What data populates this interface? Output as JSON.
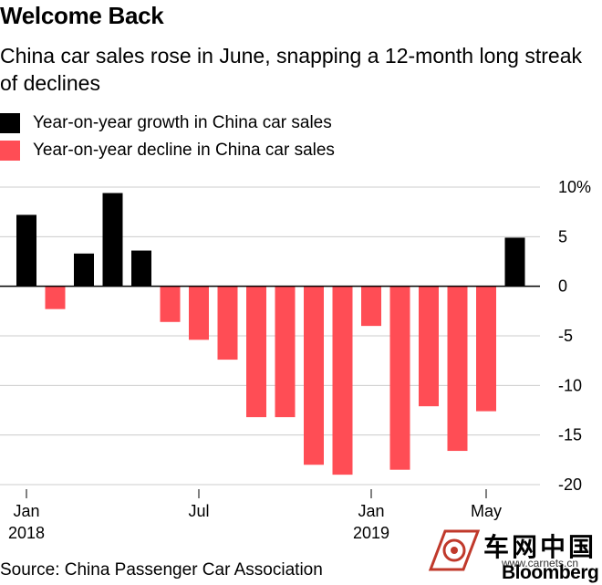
{
  "header": {
    "title": "Welcome Back",
    "subtitle": "China car sales rose in June, snapping a 12-month long streak of declines"
  },
  "legend": [
    {
      "label": "Year-on-year growth in China car sales",
      "color": "#000000"
    },
    {
      "label": "Year-on-year decline in China car sales",
      "color": "#ff4d55"
    }
  ],
  "footer": {
    "source": "Source: China Passenger Car Association"
  },
  "watermark": {
    "chinese": "车网中国",
    "url": "www.carnets.cn",
    "brand": "Bloomberg"
  },
  "chart_data": {
    "type": "bar",
    "categories": [
      "Jan 2018",
      "Feb 2018",
      "Mar 2018",
      "Apr 2018",
      "May 2018",
      "Jun 2018",
      "Jul 2018",
      "Aug 2018",
      "Sep 2018",
      "Oct 2018",
      "Nov 2018",
      "Dec 2018",
      "Jan 2019",
      "Feb 2019",
      "Mar 2019",
      "Apr 2019",
      "May 2019",
      "Jun 2019"
    ],
    "values": [
      7.2,
      -2.3,
      3.3,
      9.4,
      3.6,
      -3.6,
      -5.4,
      -7.4,
      -13.2,
      -13.2,
      -18.0,
      -19.0,
      -4.0,
      -18.5,
      -12.1,
      -16.6,
      -12.6,
      4.9
    ],
    "ylim": [
      -20,
      10
    ],
    "yticks": [
      {
        "value": 10,
        "label": "10%"
      },
      {
        "value": 5,
        "label": "5"
      },
      {
        "value": 0,
        "label": "0"
      },
      {
        "value": -5,
        "label": "-5"
      },
      {
        "value": -10,
        "label": "-10"
      },
      {
        "value": -15,
        "label": "-15"
      },
      {
        "value": -20,
        "label": "-20"
      }
    ],
    "xticks": [
      {
        "index": 0,
        "label": "Jan",
        "sublabel": "2018"
      },
      {
        "index": 6,
        "label": "Jul",
        "sublabel": ""
      },
      {
        "index": 12,
        "label": "Jan",
        "sublabel": "2019"
      },
      {
        "index": 16,
        "label": "May",
        "sublabel": ""
      }
    ],
    "colors": {
      "positive": "#000000",
      "negative": "#ff4d55",
      "grid": "#cccccc"
    },
    "grid": true,
    "legend_position": "top-left"
  }
}
